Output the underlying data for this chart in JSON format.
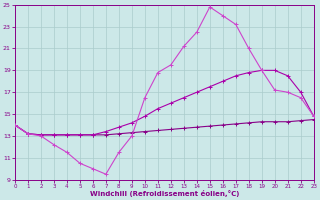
{
  "xlabel": "Windchill (Refroidissement éolien,°C)",
  "bg_color": "#cce8e8",
  "grid_color": "#aacccc",
  "color1": "#880088",
  "color2": "#aa00aa",
  "color3": "#cc44cc",
  "xlim": [
    0,
    23
  ],
  "ylim": [
    9,
    25
  ],
  "xtick_vals": [
    0,
    1,
    2,
    3,
    4,
    5,
    6,
    7,
    8,
    9,
    10,
    11,
    12,
    13,
    14,
    15,
    16,
    17,
    18,
    19,
    20,
    21,
    22,
    23
  ],
  "ytick_vals": [
    9,
    11,
    13,
    15,
    17,
    19,
    21,
    23,
    25
  ],
  "s1_x": [
    0,
    1,
    2,
    3,
    4,
    5,
    6,
    7,
    8,
    9,
    10,
    11,
    12,
    13,
    14,
    15,
    16,
    17,
    18,
    19,
    20,
    21,
    22,
    23
  ],
  "s1_y": [
    14.0,
    13.2,
    13.1,
    13.1,
    13.1,
    13.1,
    13.1,
    13.1,
    13.2,
    13.3,
    13.4,
    13.5,
    13.6,
    13.7,
    13.8,
    13.9,
    14.0,
    14.1,
    14.2,
    14.3,
    14.3,
    14.3,
    14.4,
    14.5
  ],
  "s2_x": [
    0,
    1,
    2,
    3,
    4,
    5,
    6,
    7,
    8,
    9,
    10,
    11,
    12,
    13,
    14,
    15,
    16,
    17,
    18,
    19,
    20,
    21,
    22,
    23
  ],
  "s2_y": [
    14.0,
    13.2,
    13.1,
    13.1,
    13.1,
    13.1,
    13.1,
    13.4,
    13.8,
    14.2,
    14.8,
    15.5,
    16.0,
    16.5,
    17.0,
    17.5,
    18.0,
    18.5,
    18.8,
    19.0,
    19.0,
    18.5,
    17.0,
    14.8
  ],
  "s3_x": [
    0,
    1,
    2,
    3,
    4,
    5,
    6,
    7,
    8,
    9,
    10,
    11,
    12,
    13,
    14,
    15,
    16,
    17,
    18,
    19,
    20,
    21,
    22,
    23
  ],
  "s3_y": [
    14.0,
    13.2,
    13.0,
    12.2,
    11.5,
    10.5,
    10.0,
    9.5,
    11.5,
    13.0,
    16.5,
    18.8,
    19.5,
    21.2,
    22.5,
    24.8,
    24.0,
    23.2,
    21.0,
    19.0,
    17.2,
    17.0,
    16.5,
    14.8
  ]
}
